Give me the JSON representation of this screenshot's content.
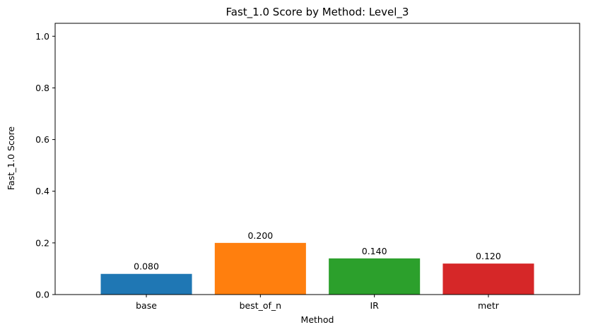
{
  "chart_data": {
    "type": "bar",
    "title": "Fast_1.0 Score by Method: Level_3",
    "xlabel": "Method",
    "ylabel": "Fast_1.0 Score",
    "categories": [
      "base",
      "best_of_n",
      "IR",
      "metr"
    ],
    "values": [
      0.08,
      0.2,
      0.14,
      0.12
    ],
    "value_labels": [
      "0.080",
      "0.200",
      "0.140",
      "0.120"
    ],
    "colors": [
      "#1f77b4",
      "#ff7f0e",
      "#2ca02c",
      "#d62728"
    ],
    "ylim": [
      0,
      1.05
    ],
    "yticks": [
      0.0,
      0.2,
      0.4,
      0.6,
      0.8,
      1.0
    ],
    "ytick_labels": [
      "0.0",
      "0.2",
      "0.4",
      "0.6",
      "0.8",
      "1.0"
    ],
    "grid": false,
    "legend": false
  }
}
